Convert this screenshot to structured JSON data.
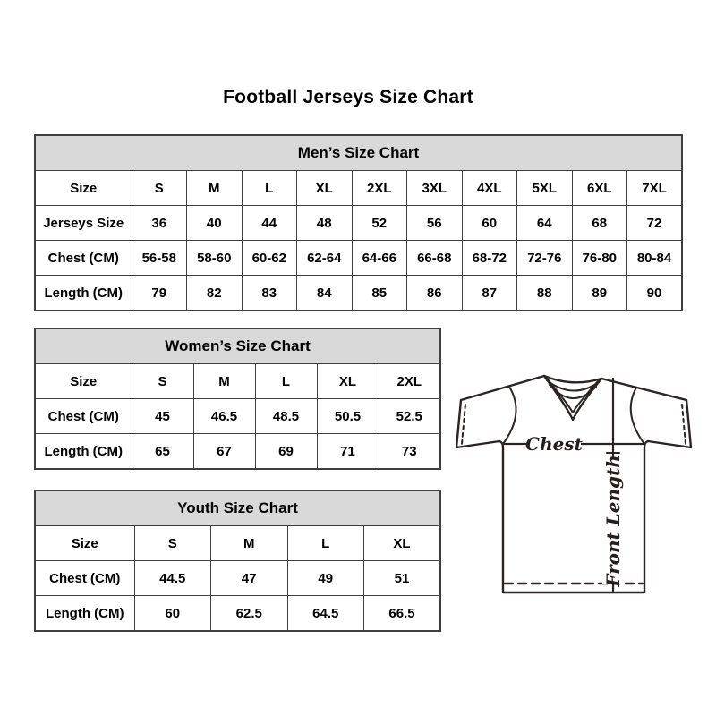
{
  "page": {
    "title": "Football Jerseys Size Chart"
  },
  "tables": {
    "men": {
      "title": "Men’s Size Chart",
      "rows": [
        {
          "label": "Size",
          "values": [
            "S",
            "M",
            "L",
            "XL",
            "2XL",
            "3XL",
            "4XL",
            "5XL",
            "6XL",
            "7XL"
          ]
        },
        {
          "label": "Jerseys Size",
          "values": [
            "36",
            "40",
            "44",
            "48",
            "52",
            "56",
            "60",
            "64",
            "68",
            "72"
          ]
        },
        {
          "label": "Chest (CM)",
          "values": [
            "56-58",
            "58-60",
            "60-62",
            "62-64",
            "64-66",
            "66-68",
            "68-72",
            "72-76",
            "76-80",
            "80-84"
          ]
        },
        {
          "label": "Length (CM)",
          "values": [
            "79",
            "82",
            "83",
            "84",
            "85",
            "86",
            "87",
            "88",
            "89",
            "90"
          ]
        }
      ]
    },
    "women": {
      "title": "Women’s Size Chart",
      "rows": [
        {
          "label": "Size",
          "values": [
            "S",
            "M",
            "L",
            "XL",
            "2XL"
          ]
        },
        {
          "label": "Chest (CM)",
          "values": [
            "45",
            "46.5",
            "48.5",
            "50.5",
            "52.5"
          ]
        },
        {
          "label": "Length (CM)",
          "values": [
            "65",
            "67",
            "69",
            "71",
            "73"
          ]
        }
      ]
    },
    "youth": {
      "title": "Youth Size Chart",
      "rows": [
        {
          "label": "Size",
          "values": [
            "S",
            "M",
            "L",
            "XL"
          ]
        },
        {
          "label": "Chest (CM)",
          "values": [
            "44.5",
            "47",
            "49",
            "51"
          ]
        },
        {
          "label": "Length (CM)",
          "values": [
            "60",
            "62.5",
            "64.5",
            "66.5"
          ]
        }
      ]
    }
  },
  "diagram": {
    "chest_label": "Chest",
    "front_length_label": "Front Length"
  },
  "colors": {
    "header_band": "#d9d9d9",
    "table_border": "#3f3f3f",
    "text": "#000000"
  }
}
